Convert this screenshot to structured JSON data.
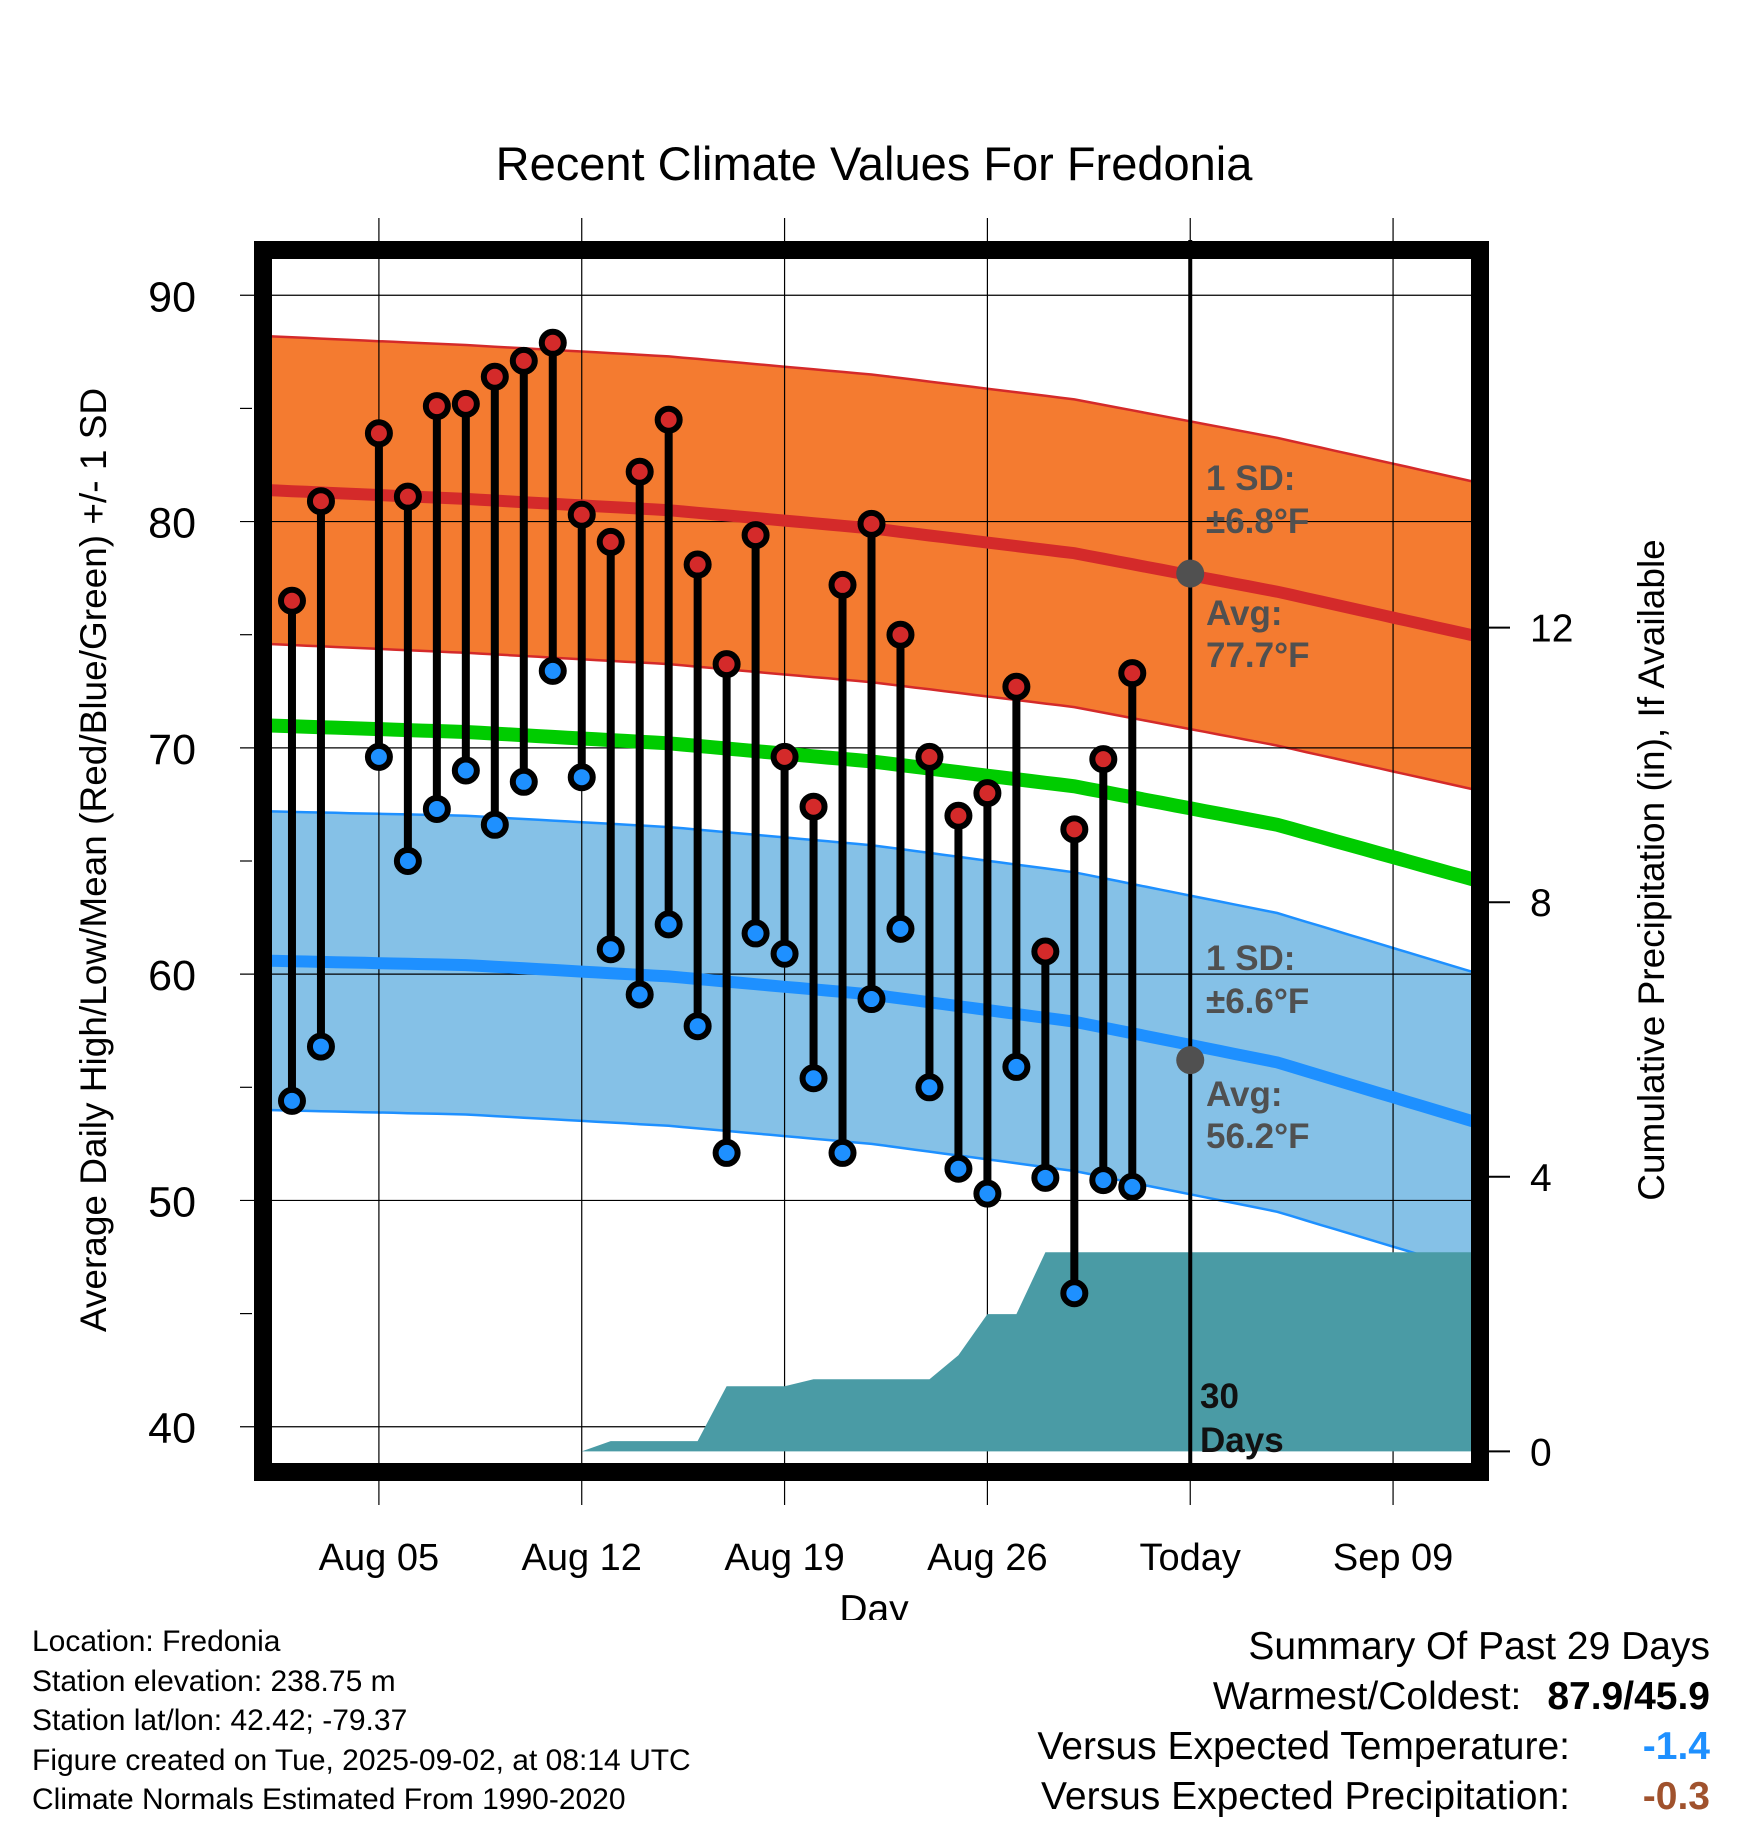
{
  "chart_data": {
    "type": "line",
    "title": "Recent Climate Values For Fredonia",
    "xlabel": "Day",
    "ylabel": "Average Daily High/Low/Mean (Red/Blue/Green) +/- 1 SD",
    "ylabel_right": "Cumulative Precipitation (in), If Available",
    "ylim": [
      38,
      92
    ],
    "y2lim": [
      -0.3,
      17.5
    ],
    "xlim": [
      "Aug 01",
      "Sep 12"
    ],
    "x_tick_labels": [
      "Aug 05",
      "Aug 12",
      "Aug 19",
      "Aug 26",
      "Today",
      "Sep 09"
    ],
    "y_tick_labels": [
      "40",
      "50",
      "60",
      "70",
      "80",
      "90"
    ],
    "y2_tick_labels": [
      "0",
      "4",
      "8",
      "12"
    ],
    "grid": true,
    "colors": {
      "high": "#d42a2a",
      "high_band": "#f47b30",
      "low": "#1e90ff",
      "low_band": "#85c1e7",
      "mean": "#00cc00",
      "precip": "#4a9ba5",
      "marker_avg": "#505050",
      "annotation": "#505050",
      "summary_cold": "#1e90ff",
      "summary_dry": "#a0522d"
    },
    "normals": {
      "days": [
        "Aug 01",
        "Aug 08",
        "Aug 15",
        "Aug 22",
        "Aug 29",
        "Sep 05",
        "Sep 12"
      ],
      "high": [
        81.4,
        81.0,
        80.5,
        79.7,
        78.6,
        76.9,
        74.9
      ],
      "low": [
        60.6,
        60.4,
        59.9,
        59.1,
        57.9,
        56.1,
        53.4
      ],
      "mean": [
        71.0,
        70.7,
        70.2,
        69.4,
        68.3,
        66.6,
        64.1
      ]
    },
    "high_sd": 6.8,
    "low_sd": 6.6,
    "observations": {
      "x": [
        "Aug 02",
        "Aug 03",
        "Aug 05",
        "Aug 06",
        "Aug 07",
        "Aug 08",
        "Aug 09",
        "Aug 10",
        "Aug 11",
        "Aug 12",
        "Aug 13",
        "Aug 14",
        "Aug 15",
        "Aug 16",
        "Aug 17",
        "Aug 18",
        "Aug 19",
        "Aug 20",
        "Aug 21",
        "Aug 22",
        "Aug 23",
        "Aug 24",
        "Aug 25",
        "Aug 26",
        "Aug 27",
        "Aug 28",
        "Aug 29",
        "Aug 30",
        "Aug 31",
        "Sep 01"
      ],
      "high": [
        76.5,
        80.9,
        83.9,
        81.1,
        85.1,
        85.2,
        86.4,
        87.1,
        87.9,
        80.3,
        79.1,
        82.2,
        84.5,
        78.1,
        73.7,
        79.4,
        69.6,
        67.4,
        77.2,
        79.9,
        75.0,
        69.6,
        67.0,
        68.0,
        72.7,
        61.0,
        66.4,
        69.5,
        73.3,
        null
      ],
      "low": [
        54.4,
        56.8,
        69.6,
        65.0,
        67.3,
        69.0,
        66.6,
        68.5,
        73.4,
        68.7,
        61.1,
        59.1,
        62.2,
        57.7,
        52.1,
        61.8,
        60.9,
        55.4,
        52.1,
        58.9,
        62.0,
        55.0,
        51.4,
        50.3,
        55.9,
        51.0,
        45.9,
        50.9,
        50.6,
        null
      ]
    },
    "precip": {
      "x": [
        "Aug 01",
        "Aug 10",
        "Aug 11",
        "Aug 12",
        "Aug 13",
        "Aug 14",
        "Aug 16",
        "Aug 17",
        "Aug 19",
        "Aug 20",
        "Aug 21",
        "Aug 24",
        "Aug 25",
        "Aug 26",
        "Aug 27",
        "Aug 28",
        "Aug 29",
        "Sep 12"
      ],
      "values": [
        0.0,
        0.0,
        0.0,
        0.0,
        0.15,
        0.15,
        0.15,
        0.95,
        0.95,
        1.05,
        1.05,
        1.05,
        1.4,
        2.0,
        2.0,
        2.9,
        2.9,
        2.9
      ]
    },
    "today": "Sep 02",
    "annotations": {
      "high_sd_line1": "1 SD:",
      "high_sd_line2": "±6.8°F",
      "high_avg_line1": "Avg:",
      "high_avg_line2": "77.7°F",
      "low_sd_line1": "1 SD:",
      "low_sd_line2": "±6.6°F",
      "low_avg_line1": "Avg:",
      "low_avg_line2": "56.2°F",
      "days_line1": "30",
      "days_line2": "Days"
    },
    "avg_markers": {
      "high": 77.7,
      "low": 56.2
    }
  },
  "info": {
    "location": "Location: Fredonia",
    "elevation": "Station elevation: 238.75 m",
    "latlon": "Station lat/lon: 42.42; -79.37",
    "created": "Figure created on Tue, 2025-09-02, at 08:14 UTC",
    "normals": "Climate Normals Estimated From 1990-2020"
  },
  "summary": {
    "title": "Summary Of Past 29 Days",
    "warm_cold_label": "Warmest/Coldest:",
    "warm_cold_value": "87.9/45.9",
    "temp_label": "Versus Expected Temperature:",
    "temp_value": "-1.4",
    "precip_label": "Versus Expected Precipitation:",
    "precip_value": "-0.3"
  }
}
